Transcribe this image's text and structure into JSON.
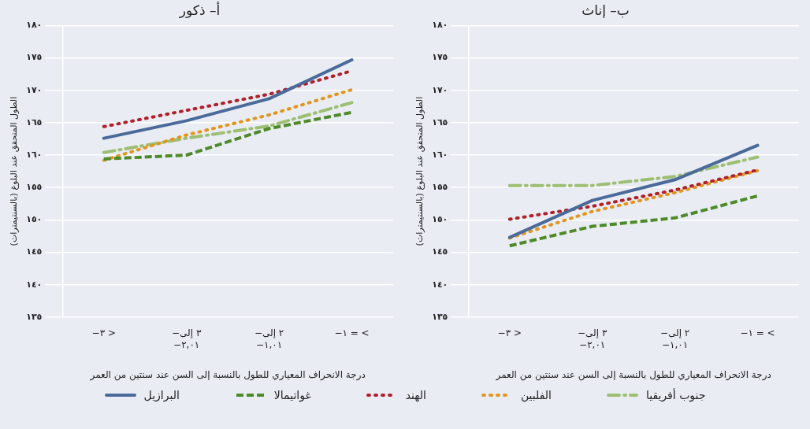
{
  "chart_data": [
    {
      "type": "line",
      "title": "أ– ذكور",
      "xlabel": "درجة الانحراف المعياري للطول بالنسبة إلى السن عند سنتين من العمر",
      "ylabel": "الطول المتحقق عند البلوغ (بالسنتيمترات)",
      "categories": [
        "−٣ >",
        "−٣ إلى\n−٢,٠١",
        "−٢ إلى\n−١,٠١",
        "−١ = <"
      ],
      "ylim": [
        135,
        180
      ],
      "yticks": [
        {
          "value": 135,
          "label": "١٣٥"
        },
        {
          "value": 140,
          "label": "١٤٠"
        },
        {
          "value": 145,
          "label": "١٤٥"
        },
        {
          "value": 150,
          "label": "١٥٠"
        },
        {
          "value": 155,
          "label": "١٥٥"
        },
        {
          "value": 160,
          "label": "١٦٠"
        },
        {
          "value": 165,
          "label": "١٦٥"
        },
        {
          "value": 170,
          "label": "١٧٠"
        },
        {
          "value": 175,
          "label": "١٧٥"
        },
        {
          "value": 180,
          "label": "١٨٠"
        }
      ],
      "grid": "y",
      "legend": "bottom",
      "series": [
        {
          "name": "البرازيل",
          "color": "#4a6b9a",
          "line_style": "solid",
          "values": [
            162.6,
            165.3,
            168.7,
            174.7
          ]
        },
        {
          "name": "غواتيمالا",
          "color": "#4e8a2a",
          "line_style": "dashed",
          "values": [
            159.4,
            160.0,
            164.1,
            166.6
          ]
        },
        {
          "name": "الهند",
          "color": "#b0202a",
          "line_style": "dotted",
          "values": [
            164.4,
            166.9,
            169.4,
            173.0
          ]
        },
        {
          "name": "الفلبين",
          "color": "#e0961e",
          "line_style": "dotted",
          "values": [
            159.2,
            163.1,
            166.2,
            170.1
          ]
        },
        {
          "name": "جنوب أفريقيا",
          "color": "#9dbf74",
          "line_style": "dashdot",
          "values": [
            160.4,
            162.6,
            164.5,
            168.1
          ]
        }
      ]
    },
    {
      "type": "line",
      "title": "ب– إناث",
      "xlabel": "درجة الانحراف المعياري للطول بالنسبة إلى السن عند سنتين من العمر",
      "ylabel": "الطول المتحقق عند البلوغ (بالسنتيمترات)",
      "categories": [
        "−٣ >",
        "−٣ إلى\n−٢,٠١",
        "−٢ إلى\n−١,٠١",
        "−١ = <"
      ],
      "ylim": [
        135,
        180
      ],
      "yticks": [
        {
          "value": 135,
          "label": "١٣٥"
        },
        {
          "value": 140,
          "label": "١٤٠"
        },
        {
          "value": 145,
          "label": "١٤٥"
        },
        {
          "value": 150,
          "label": "١٥٠"
        },
        {
          "value": 155,
          "label": "١٥٥"
        },
        {
          "value": 160,
          "label": "١٦٠"
        },
        {
          "value": 165,
          "label": "١٦٥"
        },
        {
          "value": 170,
          "label": "١٧٠"
        },
        {
          "value": 175,
          "label": "١٧٥"
        },
        {
          "value": 180,
          "label": "١٨٠"
        }
      ],
      "grid": "y",
      "series": [
        {
          "color": "#4a6b9a",
          "line_style": "solid",
          "values": [
            147.3,
            153.0,
            156.2,
            161.5
          ]
        },
        {
          "color": "#4e8a2a",
          "line_style": "dashed",
          "values": [
            146.0,
            149.0,
            150.3,
            153.7
          ]
        },
        {
          "color": "#b0202a",
          "line_style": "dotted",
          "values": [
            150.1,
            152.1,
            154.6,
            157.7
          ]
        },
        {
          "color": "#e0961e",
          "line_style": "dotted",
          "values": [
            147.2,
            151.3,
            154.2,
            157.6
          ]
        },
        {
          "color": "#9dbf74",
          "line_style": "dashdot",
          "values": [
            155.3,
            155.3,
            156.7,
            159.7
          ]
        }
      ]
    }
  ]
}
